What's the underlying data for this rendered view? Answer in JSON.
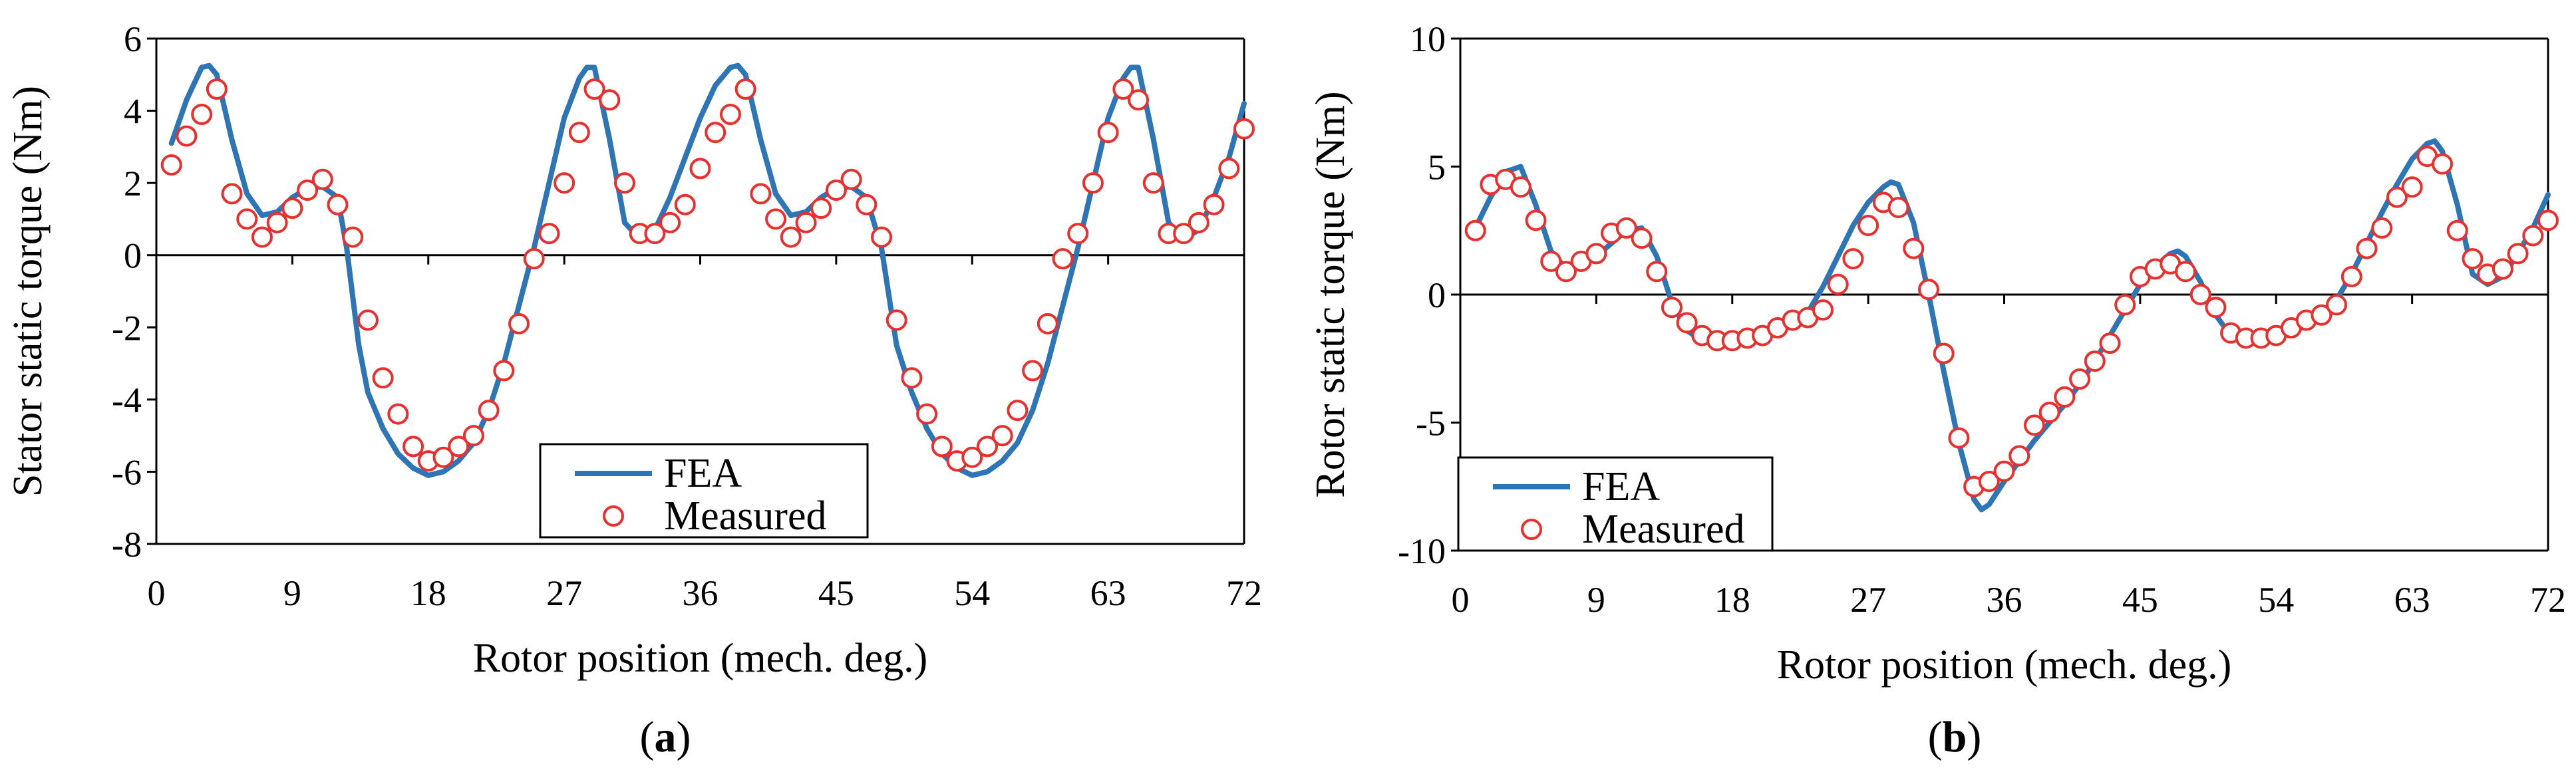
{
  "chart_data": [
    {
      "type": "line",
      "panel_label": "a",
      "title": "",
      "xlabel": "Rotor position (mech. deg.)",
      "ylabel": "Stator static torque (Nm)",
      "xlim": [
        0,
        72
      ],
      "ylim": [
        -8,
        6
      ],
      "xticks": [
        0,
        9,
        18,
        27,
        36,
        45,
        54,
        63,
        72
      ],
      "yticks": [
        -8,
        -6,
        -4,
        -2,
        0,
        2,
        4,
        6
      ],
      "grid": false,
      "legend_position": "bottom-center",
      "colors": {
        "fea": "#2e75b6",
        "measured": "#e8312f"
      },
      "series": [
        {
          "name": "FEA",
          "style": "line",
          "x": [
            1,
            2,
            3,
            3.5,
            4,
            5,
            6,
            7,
            8,
            9,
            10,
            11,
            12,
            12.6,
            13.4,
            14,
            15,
            16,
            17,
            18,
            19,
            20,
            21,
            22,
            23,
            24,
            25,
            26,
            27,
            28,
            28.5,
            29,
            30,
            31,
            32,
            33,
            34,
            35,
            36,
            37,
            38,
            38.5,
            39,
            40,
            41,
            42,
            43,
            44,
            45,
            46,
            47,
            48,
            49,
            50,
            51,
            52,
            53,
            54,
            55,
            56,
            57,
            58,
            59,
            60,
            61,
            62,
            63,
            64,
            64.5,
            65,
            66,
            67,
            68,
            69,
            70,
            71,
            72
          ],
          "y": [
            3.1,
            4.3,
            5.2,
            5.25,
            5.0,
            3.2,
            1.7,
            1.1,
            1.2,
            1.6,
            1.85,
            1.9,
            1.6,
            0.2,
            -2.5,
            -3.8,
            -4.8,
            -5.5,
            -5.9,
            -6.1,
            -6.0,
            -5.7,
            -5.2,
            -4.3,
            -3.0,
            -1.4,
            0.2,
            2.0,
            3.8,
            4.9,
            5.2,
            5.2,
            3.2,
            0.9,
            0.45,
            0.7,
            1.6,
            2.7,
            3.8,
            4.7,
            5.2,
            5.25,
            5.0,
            3.2,
            1.7,
            1.1,
            1.2,
            1.6,
            1.85,
            1.9,
            1.6,
            0.2,
            -2.5,
            -3.8,
            -4.8,
            -5.5,
            -5.9,
            -6.1,
            -6.0,
            -5.7,
            -5.2,
            -4.3,
            -3.0,
            -1.4,
            0.2,
            2.0,
            3.8,
            4.9,
            5.2,
            5.2,
            3.2,
            0.9,
            0.45,
            0.7,
            1.6,
            2.7,
            4.2
          ]
        },
        {
          "name": "Measured",
          "style": "markers",
          "x": [
            1,
            2,
            3,
            4,
            5,
            6,
            7,
            8,
            9,
            10,
            11,
            12,
            13,
            14,
            15,
            16,
            17,
            18,
            19,
            20,
            21,
            22,
            23,
            24,
            25,
            26,
            27,
            28,
            29,
            30,
            31,
            32,
            33,
            34,
            35,
            36,
            37,
            38,
            39,
            40,
            41,
            42,
            43,
            44,
            45,
            46,
            47,
            48,
            49,
            50,
            51,
            52,
            53,
            54,
            55,
            56,
            57,
            58,
            59,
            60,
            61,
            62,
            63,
            64,
            65,
            66,
            67,
            68,
            69,
            70,
            71,
            72
          ],
          "y": [
            2.5,
            3.3,
            3.9,
            4.6,
            1.7,
            1.0,
            0.5,
            0.9,
            1.3,
            1.8,
            2.1,
            1.4,
            0.5,
            -1.8,
            -3.4,
            -4.4,
            -5.3,
            -5.7,
            -5.6,
            -5.3,
            -5.0,
            -4.3,
            -3.2,
            -1.9,
            -0.1,
            0.6,
            2.0,
            3.4,
            4.6,
            4.3,
            2.0,
            0.6,
            0.6,
            0.9,
            1.4,
            2.4,
            3.4,
            3.9,
            4.6,
            1.7,
            1.0,
            0.5,
            0.9,
            1.3,
            1.8,
            2.1,
            1.4,
            0.5,
            -1.8,
            -3.4,
            -4.4,
            -5.3,
            -5.7,
            -5.6,
            -5.3,
            -5.0,
            -4.3,
            -3.2,
            -1.9,
            -0.1,
            0.6,
            2.0,
            3.4,
            4.6,
            4.3,
            2.0,
            0.6,
            0.6,
            0.9,
            1.4,
            2.4,
            3.5
          ]
        }
      ]
    },
    {
      "type": "line",
      "panel_label": "b",
      "title": "",
      "xlabel": "Rotor position (mech. deg.)",
      "ylabel": "Rotor static torque (Nm)",
      "xlim": [
        0,
        72
      ],
      "ylim": [
        -10,
        10
      ],
      "xticks": [
        0,
        9,
        18,
        27,
        36,
        45,
        54,
        63,
        72
      ],
      "yticks": [
        -10,
        -5,
        0,
        5,
        10
      ],
      "grid": false,
      "legend_position": "bottom-left",
      "colors": {
        "fea": "#2e75b6",
        "measured": "#e8312f"
      },
      "series": [
        {
          "name": "FEA",
          "style": "line",
          "x": [
            1,
            2,
            3,
            4,
            5,
            6,
            7,
            8,
            9,
            10,
            11,
            12,
            13,
            14,
            15,
            16,
            17,
            18,
            19,
            20,
            21,
            22,
            23,
            24,
            25,
            26,
            27,
            28,
            28.5,
            29,
            30,
            31,
            32,
            33,
            34,
            34.5,
            35,
            36,
            37,
            38,
            39,
            40,
            41,
            42,
            43,
            44,
            45,
            46,
            47,
            47.5,
            48,
            49,
            50,
            51,
            52,
            53,
            54,
            55,
            56,
            57,
            58,
            59,
            60,
            61,
            62,
            63,
            64,
            64.5,
            65,
            66,
            67,
            68,
            69,
            70,
            71,
            72
          ],
          "y": [
            2.6,
            3.8,
            4.8,
            5.0,
            3.5,
            1.7,
            1.0,
            1.1,
            1.5,
            2.0,
            2.5,
            2.6,
            1.5,
            -0.3,
            -1.4,
            -1.8,
            -2.0,
            -2.0,
            -1.8,
            -1.6,
            -1.3,
            -1.0,
            -0.7,
            0.3,
            1.5,
            2.7,
            3.6,
            4.2,
            4.4,
            4.3,
            2.8,
            0.0,
            -3.0,
            -5.8,
            -8.0,
            -8.4,
            -8.2,
            -7.3,
            -6.5,
            -5.7,
            -5.0,
            -4.3,
            -3.5,
            -2.6,
            -1.6,
            -0.6,
            0.4,
            1.1,
            1.6,
            1.7,
            1.5,
            0.5,
            -0.8,
            -1.6,
            -1.8,
            -1.8,
            -1.7,
            -1.5,
            -1.2,
            -0.8,
            -0.2,
            0.8,
            2.0,
            3.2,
            4.3,
            5.3,
            5.9,
            6.0,
            5.6,
            3.5,
            0.8,
            0.4,
            0.7,
            1.6,
            2.6,
            3.9
          ]
        },
        {
          "name": "Measured",
          "style": "markers",
          "x": [
            1,
            2,
            3,
            4,
            5,
            6,
            7,
            8,
            9,
            10,
            11,
            12,
            13,
            14,
            15,
            16,
            17,
            18,
            19,
            20,
            21,
            22,
            23,
            24,
            25,
            26,
            27,
            28,
            29,
            30,
            31,
            32,
            33,
            34,
            35,
            36,
            37,
            38,
            39,
            40,
            41,
            42,
            43,
            44,
            45,
            46,
            47,
            48,
            49,
            50,
            51,
            52,
            53,
            54,
            55,
            56,
            57,
            58,
            59,
            60,
            61,
            62,
            63,
            64,
            65,
            66,
            67,
            68,
            69,
            70,
            71,
            72
          ],
          "y": [
            2.5,
            4.3,
            4.5,
            4.2,
            2.9,
            1.3,
            0.9,
            1.3,
            1.6,
            2.4,
            2.6,
            2.2,
            0.9,
            -0.5,
            -1.1,
            -1.6,
            -1.8,
            -1.8,
            -1.7,
            -1.6,
            -1.3,
            -1.0,
            -0.9,
            -0.6,
            0.4,
            1.4,
            2.7,
            3.6,
            3.4,
            1.8,
            0.2,
            -2.3,
            -5.6,
            -7.5,
            -7.3,
            -6.9,
            -6.3,
            -5.1,
            -4.6,
            -4.0,
            -3.3,
            -2.6,
            -1.9,
            -0.4,
            0.7,
            1.0,
            1.2,
            0.9,
            0.0,
            -0.5,
            -1.5,
            -1.7,
            -1.7,
            -1.6,
            -1.3,
            -1.0,
            -0.8,
            -0.4,
            0.7,
            1.8,
            2.6,
            3.8,
            4.2,
            5.4,
            5.1,
            2.5,
            1.4,
            0.8,
            1.0,
            1.6,
            2.3,
            2.9
          ]
        }
      ]
    }
  ]
}
